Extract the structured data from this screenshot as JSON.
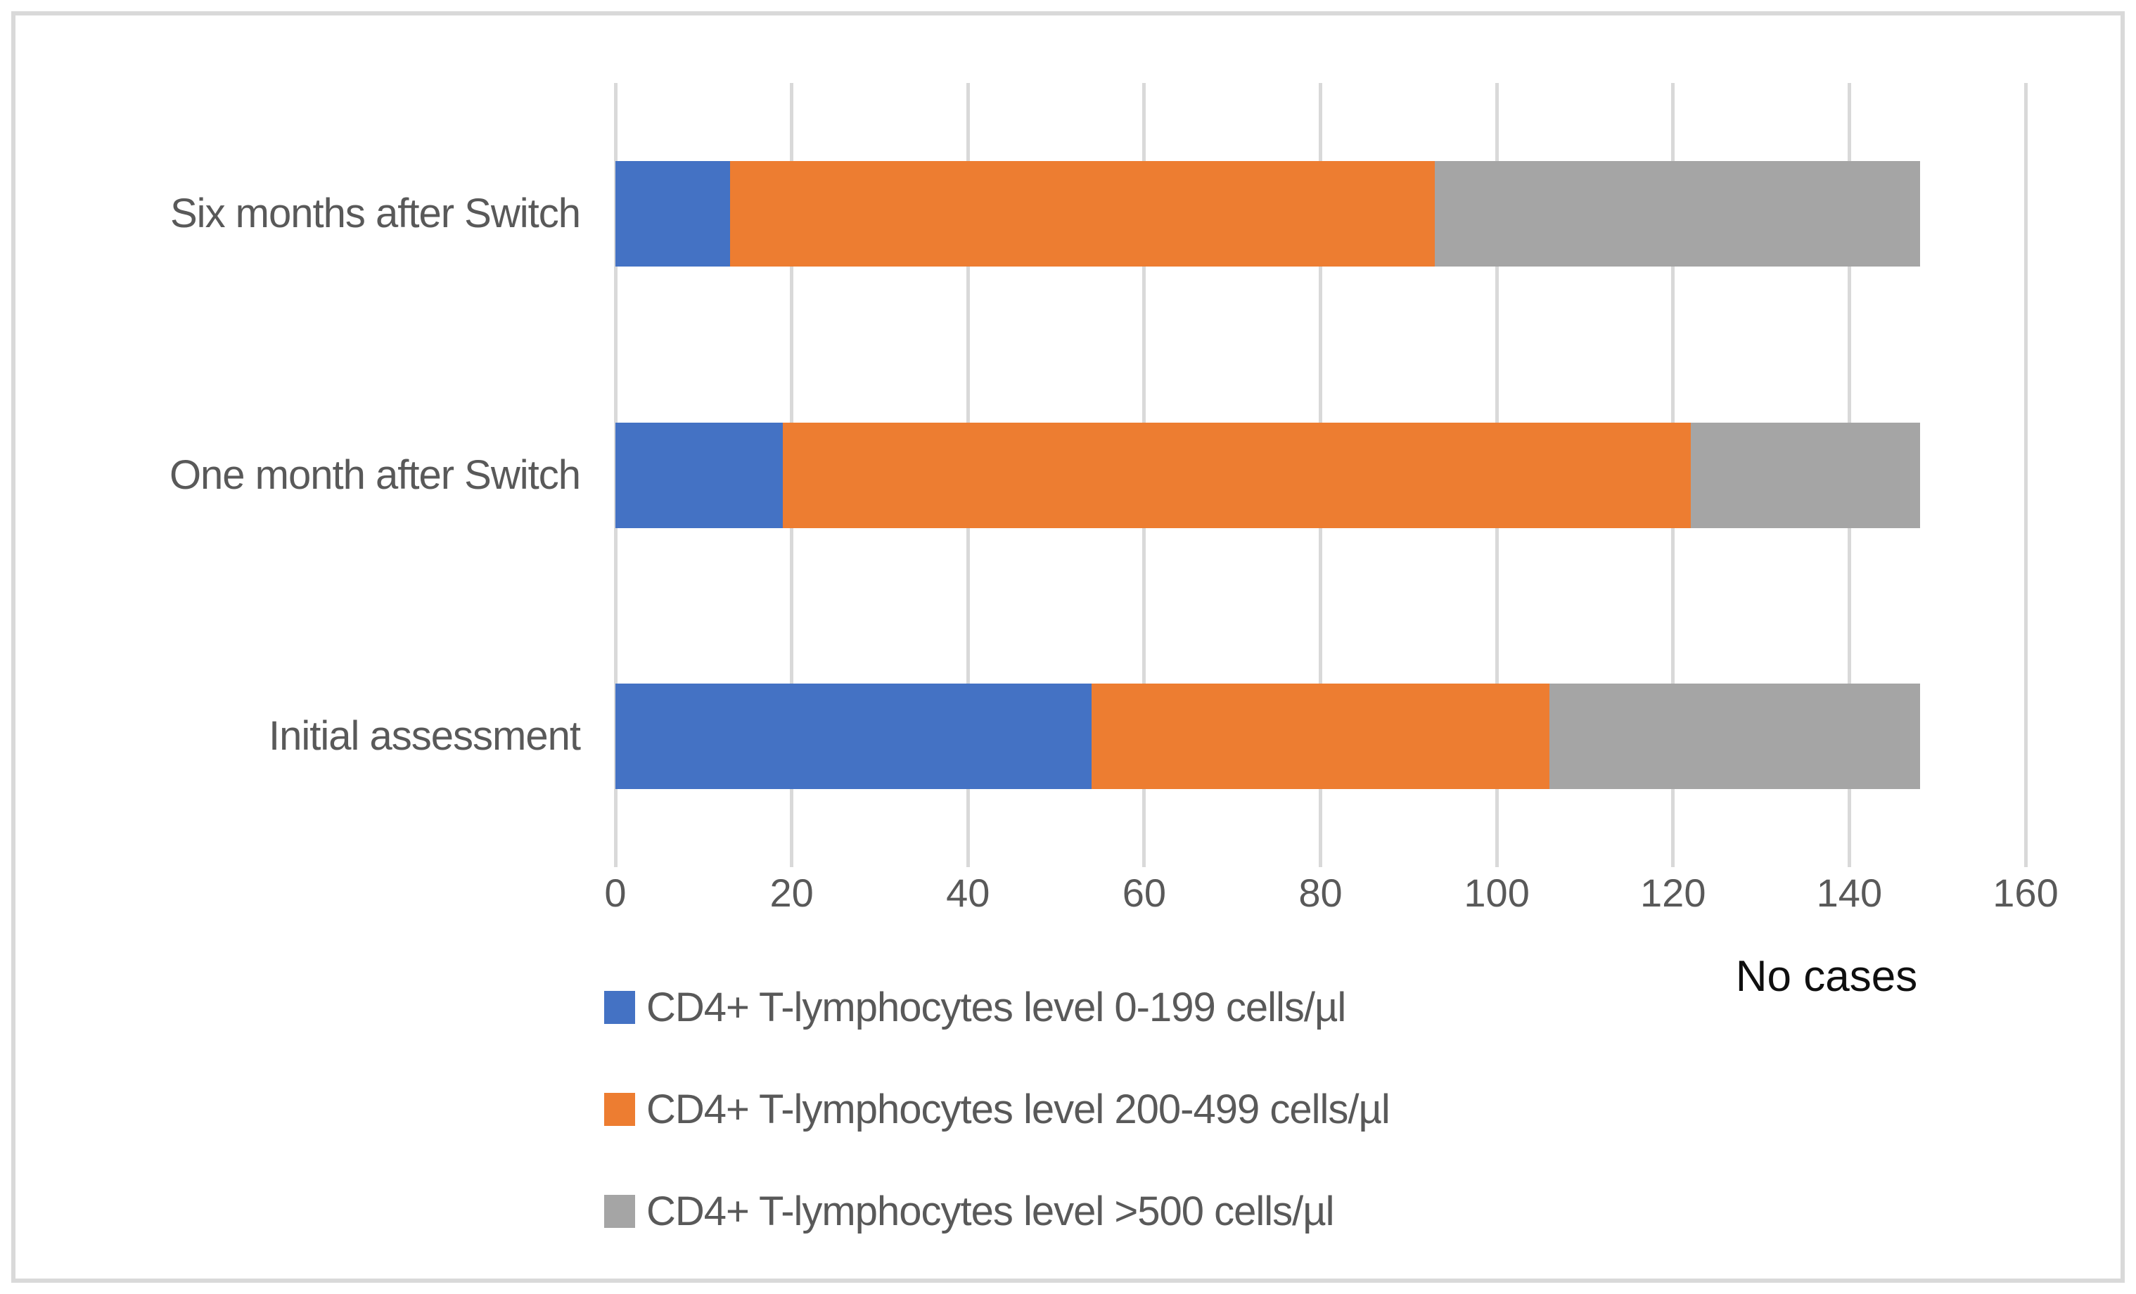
{
  "chart_data": {
    "type": "bar",
    "orientation": "horizontal",
    "stacked": true,
    "title": "",
    "xlabel": "No cases",
    "ylabel": "",
    "xlim": [
      0,
      160
    ],
    "xticks": [
      0,
      20,
      40,
      60,
      80,
      100,
      120,
      140,
      160
    ],
    "grid": "vertical",
    "legend_position": "bottom-left",
    "categories": [
      "Six months after Switch",
      "One month after Switch",
      "Initial assessment"
    ],
    "series": [
      {
        "name": "CD4+ T-lymphocytes level 0-199 cells/µl",
        "color": "#4472C4",
        "values": [
          13,
          19,
          54
        ]
      },
      {
        "name": "CD4+ T-lymphocytes level 200-499 cells/µl",
        "color": "#ED7D31",
        "values": [
          80,
          103,
          52
        ]
      },
      {
        "name": "CD4+ T-lymphocytes level >500 cells/µl",
        "color": "#A5A5A5",
        "values": [
          55,
          26,
          42
        ]
      }
    ],
    "totals": [
      148,
      148,
      148
    ],
    "colors": {
      "grid": "#D9D9D9",
      "frame_border": "#D9D9D9",
      "axis_text": "#595959",
      "axis_title_text": "#0F0F0F",
      "background": "#FFFFFF"
    }
  }
}
